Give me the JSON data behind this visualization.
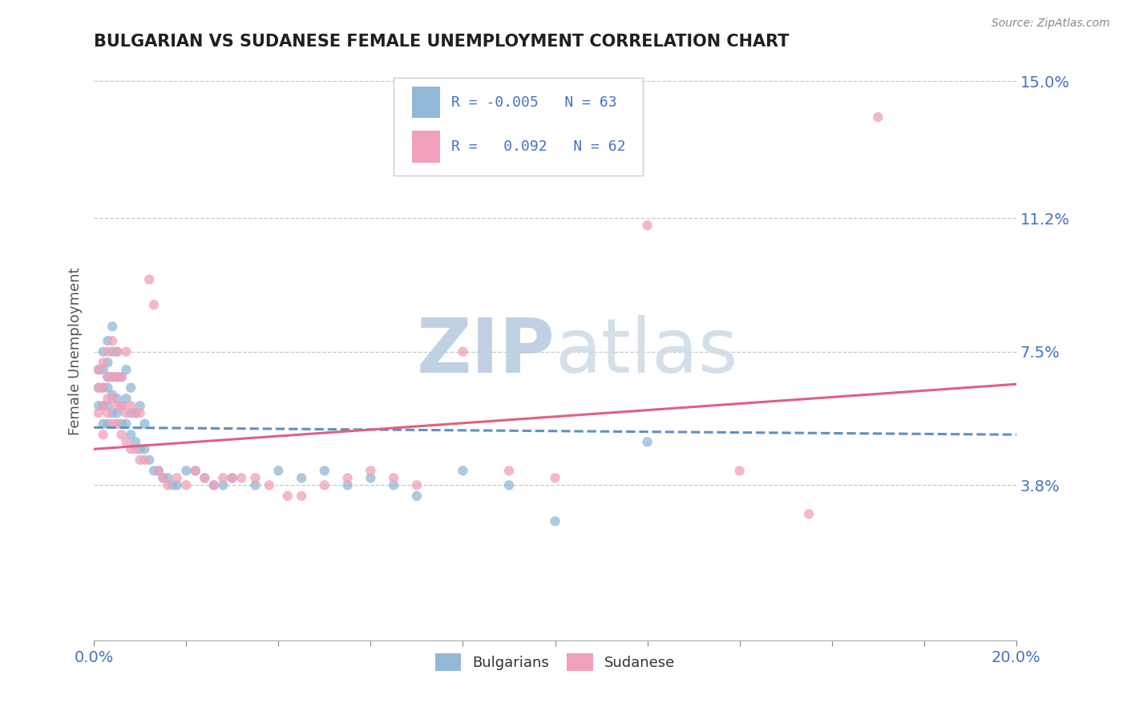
{
  "title": "BULGARIAN VS SUDANESE FEMALE UNEMPLOYMENT CORRELATION CHART",
  "source_text": "Source: ZipAtlas.com",
  "ylabel": "Female Unemployment",
  "xlim": [
    0.0,
    0.2
  ],
  "ylim": [
    -0.005,
    0.155
  ],
  "xtick_labels": [
    "0.0%",
    "",
    "",
    "",
    "",
    "",
    "",
    "",
    "",
    "",
    "20.0%"
  ],
  "xtick_positions": [
    0.0,
    0.02,
    0.04,
    0.06,
    0.08,
    0.1,
    0.12,
    0.14,
    0.16,
    0.18,
    0.2
  ],
  "ytick_labels": [
    "3.8%",
    "7.5%",
    "11.2%",
    "15.0%"
  ],
  "ytick_positions": [
    0.038,
    0.075,
    0.112,
    0.15
  ],
  "grid_color": "#c8c8c8",
  "background_color": "#ffffff",
  "watermark_text": "ZIPatlas",
  "watermark_color": "#ccd8e8",
  "legend_R_bulgarian": "-0.005",
  "legend_N_bulgarian": "63",
  "legend_R_sudanese": "0.092",
  "legend_N_sudanese": "62",
  "bulgarian_color": "#92b8d8",
  "sudanese_color": "#f0a0b8",
  "trend_bulgarian_color": "#6090c0",
  "trend_sudanese_color": "#e06080",
  "title_color": "#202020",
  "tick_label_color": "#4472c4",
  "trend_bulgarian_start_y": 0.054,
  "trend_bulgarian_end_y": 0.052,
  "trend_sudanese_start_y": 0.048,
  "trend_sudanese_end_y": 0.066,
  "bulgarians_x": [
    0.001,
    0.001,
    0.001,
    0.002,
    0.002,
    0.002,
    0.002,
    0.002,
    0.003,
    0.003,
    0.003,
    0.003,
    0.003,
    0.003,
    0.004,
    0.004,
    0.004,
    0.004,
    0.004,
    0.005,
    0.005,
    0.005,
    0.005,
    0.006,
    0.006,
    0.006,
    0.007,
    0.007,
    0.007,
    0.008,
    0.008,
    0.008,
    0.009,
    0.009,
    0.01,
    0.01,
    0.011,
    0.011,
    0.012,
    0.013,
    0.014,
    0.015,
    0.016,
    0.017,
    0.018,
    0.02,
    0.022,
    0.024,
    0.026,
    0.028,
    0.03,
    0.035,
    0.04,
    0.045,
    0.05,
    0.055,
    0.06,
    0.065,
    0.07,
    0.08,
    0.09,
    0.1,
    0.12
  ],
  "bulgarians_y": [
    0.06,
    0.065,
    0.07,
    0.055,
    0.06,
    0.065,
    0.07,
    0.075,
    0.055,
    0.06,
    0.065,
    0.068,
    0.072,
    0.078,
    0.058,
    0.063,
    0.068,
    0.075,
    0.082,
    0.058,
    0.062,
    0.068,
    0.075,
    0.055,
    0.06,
    0.068,
    0.055,
    0.062,
    0.07,
    0.052,
    0.058,
    0.065,
    0.05,
    0.058,
    0.048,
    0.06,
    0.048,
    0.055,
    0.045,
    0.042,
    0.042,
    0.04,
    0.04,
    0.038,
    0.038,
    0.042,
    0.042,
    0.04,
    0.038,
    0.038,
    0.04,
    0.038,
    0.042,
    0.04,
    0.042,
    0.038,
    0.04,
    0.038,
    0.035,
    0.042,
    0.038,
    0.028,
    0.05
  ],
  "sudanese_x": [
    0.001,
    0.001,
    0.001,
    0.002,
    0.002,
    0.002,
    0.002,
    0.003,
    0.003,
    0.003,
    0.003,
    0.004,
    0.004,
    0.004,
    0.004,
    0.005,
    0.005,
    0.005,
    0.005,
    0.006,
    0.006,
    0.006,
    0.007,
    0.007,
    0.007,
    0.008,
    0.008,
    0.009,
    0.009,
    0.01,
    0.01,
    0.011,
    0.012,
    0.013,
    0.014,
    0.015,
    0.016,
    0.018,
    0.02,
    0.022,
    0.024,
    0.026,
    0.028,
    0.03,
    0.032,
    0.035,
    0.038,
    0.042,
    0.045,
    0.05,
    0.055,
    0.06,
    0.065,
    0.07,
    0.08,
    0.09,
    0.1,
    0.11,
    0.12,
    0.14,
    0.155,
    0.17
  ],
  "sudanese_y": [
    0.058,
    0.065,
    0.07,
    0.052,
    0.06,
    0.065,
    0.072,
    0.058,
    0.062,
    0.068,
    0.075,
    0.055,
    0.062,
    0.068,
    0.078,
    0.055,
    0.06,
    0.068,
    0.075,
    0.052,
    0.06,
    0.068,
    0.05,
    0.058,
    0.075,
    0.048,
    0.06,
    0.048,
    0.058,
    0.045,
    0.058,
    0.045,
    0.095,
    0.088,
    0.042,
    0.04,
    0.038,
    0.04,
    0.038,
    0.042,
    0.04,
    0.038,
    0.04,
    0.04,
    0.04,
    0.04,
    0.038,
    0.035,
    0.035,
    0.038,
    0.04,
    0.042,
    0.04,
    0.038,
    0.075,
    0.042,
    0.04,
    0.125,
    0.11,
    0.042,
    0.03,
    0.14
  ]
}
